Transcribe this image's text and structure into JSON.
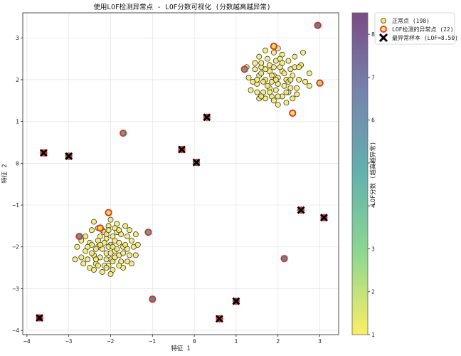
{
  "chart_data": {
    "type": "scatter",
    "title": "使用LOF检测异常点 - LOF分数可视化 (分数越高越异常)",
    "xlabel": "特征 1",
    "ylabel": "特征 2",
    "xlim": [
      -4.1,
      3.45
    ],
    "ylim": [
      -4.1,
      3.6
    ],
    "x_ticks": [
      "−4",
      "−3",
      "−2",
      "−1",
      "0",
      "1",
      "2",
      "3"
    ],
    "y_ticks": [
      "−4",
      "−3",
      "−2",
      "−1",
      "0",
      "1",
      "2",
      "3"
    ],
    "grid": true,
    "colorbar": {
      "label": "LOF分数 (越高越异常)",
      "range": [
        1,
        8.5
      ],
      "ticks": [
        "1",
        "2",
        "3",
        "4",
        "5",
        "6",
        "7",
        "8"
      ],
      "colormap": "viridis",
      "alpha": 0.7
    },
    "legend_position": "outside-top-right",
    "legend": {
      "normal": "正常点 (198)",
      "outlier": "LOF检测的异常点 (22)",
      "worst": "最异常样本 (LOF=8.50)"
    },
    "colors": {
      "normal_fill": "#f5e96a",
      "outlier_edge": "#e8262a",
      "worst_cross": "#000000"
    },
    "series": [
      {
        "name": "正常点 (198)",
        "marker": "circle",
        "points": [
          [
            1.6,
            2.3
          ],
          [
            1.7,
            2.0
          ],
          [
            1.8,
            1.8
          ],
          [
            1.9,
            2.1
          ],
          [
            2.0,
            1.9
          ],
          [
            2.1,
            2.2
          ],
          [
            1.5,
            1.9
          ],
          [
            1.6,
            2.4
          ],
          [
            1.75,
            2.5
          ],
          [
            1.95,
            2.45
          ],
          [
            2.05,
            2.3
          ],
          [
            2.2,
            2.0
          ],
          [
            2.3,
            1.8
          ],
          [
            1.85,
            1.6
          ],
          [
            1.65,
            1.7
          ],
          [
            1.55,
            2.1
          ],
          [
            1.45,
            2.25
          ],
          [
            1.4,
            1.95
          ],
          [
            1.5,
            1.7
          ],
          [
            1.7,
            1.55
          ],
          [
            1.9,
            1.5
          ],
          [
            2.1,
            1.6
          ],
          [
            2.25,
            1.7
          ],
          [
            2.35,
            2.1
          ],
          [
            2.4,
            2.3
          ],
          [
            2.25,
            2.45
          ],
          [
            2.1,
            2.6
          ],
          [
            1.9,
            2.65
          ],
          [
            1.7,
            2.7
          ],
          [
            1.55,
            2.55
          ],
          [
            1.8,
            2.2
          ],
          [
            2.0,
            2.05
          ],
          [
            1.85,
            1.95
          ],
          [
            1.75,
            1.85
          ],
          [
            2.15,
            1.85
          ],
          [
            1.95,
            1.75
          ],
          [
            1.6,
            2.15
          ],
          [
            2.3,
            2.25
          ],
          [
            2.5,
            2.0
          ],
          [
            2.45,
            1.65
          ],
          [
            2.55,
            2.35
          ],
          [
            2.65,
            1.95
          ],
          [
            1.3,
            2.05
          ],
          [
            1.35,
            1.75
          ],
          [
            2.0,
            1.4
          ],
          [
            2.2,
            1.45
          ],
          [
            1.8,
            2.35
          ],
          [
            1.65,
            1.95
          ],
          [
            2.05,
            2.5
          ],
          [
            2.35,
            1.55
          ],
          [
            1.5,
            2.0
          ],
          [
            1.9,
            2.3
          ],
          [
            2.15,
            2.15
          ],
          [
            1.7,
            2.25
          ],
          [
            2.25,
            1.95
          ],
          [
            1.8,
            1.7
          ],
          [
            2.4,
            2.55
          ],
          [
            1.55,
            1.55
          ],
          [
            2.5,
            2.3
          ],
          [
            2.75,
            2.15
          ],
          [
            2.6,
            2.65
          ],
          [
            1.25,
            2.3
          ],
          [
            2.0,
            2.75
          ],
          [
            1.6,
            1.6
          ],
          [
            2.1,
            2.4
          ],
          [
            1.95,
            2.0
          ],
          [
            2.3,
            2.0
          ],
          [
            1.45,
            2.4
          ],
          [
            1.85,
            2.1
          ],
          [
            2.2,
            1.7
          ],
          [
            2.45,
            1.8
          ],
          [
            2.75,
            1.85
          ],
          [
            2.0,
            1.6
          ],
          [
            -2.3,
            -2.0
          ],
          [
            -2.1,
            -1.8
          ],
          [
            -1.9,
            -2.1
          ],
          [
            -2.0,
            -2.3
          ],
          [
            -2.2,
            -1.6
          ],
          [
            -1.8,
            -1.9
          ],
          [
            -2.4,
            -2.2
          ],
          [
            -2.5,
            -1.9
          ],
          [
            -1.7,
            -2.0
          ],
          [
            -2.05,
            -1.5
          ],
          [
            -1.85,
            -1.65
          ],
          [
            -2.15,
            -2.45
          ],
          [
            -1.95,
            -2.55
          ],
          [
            -2.35,
            -2.4
          ],
          [
            -2.6,
            -2.1
          ],
          [
            -2.7,
            -1.85
          ],
          [
            -1.6,
            -1.75
          ],
          [
            -1.55,
            -2.2
          ],
          [
            -1.75,
            -2.35
          ],
          [
            -2.25,
            -1.75
          ],
          [
            -2.45,
            -1.6
          ],
          [
            -2.0,
            -1.95
          ],
          [
            -2.1,
            -2.15
          ],
          [
            -1.9,
            -1.85
          ],
          [
            -2.3,
            -1.85
          ],
          [
            -1.8,
            -2.2
          ],
          [
            -2.55,
            -2.3
          ],
          [
            -2.2,
            -2.6
          ],
          [
            -1.65,
            -1.5
          ],
          [
            -1.5,
            -1.85
          ],
          [
            -1.45,
            -2.0
          ],
          [
            -1.7,
            -2.5
          ],
          [
            -2.8,
            -2.0
          ],
          [
            -2.4,
            -1.4
          ],
          [
            -2.0,
            -1.35
          ],
          [
            -1.85,
            -1.45
          ],
          [
            -1.95,
            -2.35
          ],
          [
            -2.15,
            -1.9
          ],
          [
            -2.35,
            -2.05
          ],
          [
            -2.05,
            -2.0
          ],
          [
            -1.9,
            -1.55
          ],
          [
            -2.5,
            -2.5
          ],
          [
            -2.1,
            -2.3
          ],
          [
            -1.6,
            -2.35
          ],
          [
            -2.65,
            -2.4
          ],
          [
            -1.4,
            -2.2
          ],
          [
            -2.25,
            -2.25
          ],
          [
            -1.75,
            -1.7
          ],
          [
            -2.0,
            -2.65
          ],
          [
            -1.85,
            -2.05
          ],
          [
            -2.3,
            -1.55
          ],
          [
            -2.15,
            -1.65
          ],
          [
            -1.65,
            -1.95
          ],
          [
            -2.45,
            -1.95
          ],
          [
            -1.95,
            -1.75
          ],
          [
            -1.35,
            -1.95
          ],
          [
            -2.6,
            -1.75
          ],
          [
            -2.05,
            -2.45
          ],
          [
            -1.8,
            -2.45
          ],
          [
            -2.2,
            -2.05
          ],
          [
            -2.7,
            -2.25
          ],
          [
            -1.55,
            -1.6
          ],
          [
            -2.4,
            -2.55
          ],
          [
            -1.7,
            -2.15
          ],
          [
            -1.9,
            -2.25
          ],
          [
            -2.1,
            -1.7
          ],
          [
            -2.35,
            -2.3
          ],
          [
            -1.5,
            -2.4
          ],
          [
            -2.55,
            -2.0
          ],
          [
            -2.0,
            -2.15
          ],
          [
            -1.8,
            -1.6
          ],
          [
            -2.25,
            -1.95
          ],
          [
            -2.1,
            -2.5
          ],
          [
            -1.95,
            -2.0
          ],
          [
            -2.45,
            -2.15
          ],
          [
            -1.6,
            -2.05
          ],
          [
            -2.3,
            -2.45
          ],
          [
            -1.4,
            -1.7
          ],
          [
            -2.85,
            -2.3
          ],
          [
            -2.05,
            -1.6
          ]
        ]
      },
      {
        "name": "LOF检测的异常点 (22)",
        "marker": "circle-red-edge",
        "points": [
          [
            1.9,
            2.8
          ],
          [
            1.2,
            2.25
          ],
          [
            2.95,
            3.3
          ],
          [
            3.0,
            1.92
          ],
          [
            2.35,
            1.2
          ],
          [
            -1.7,
            0.72
          ],
          [
            -2.05,
            -1.18
          ],
          [
            -2.25,
            -1.55
          ],
          [
            -2.75,
            -1.75
          ],
          [
            -1.1,
            -1.65
          ],
          [
            -1.0,
            -3.25
          ],
          [
            2.15,
            -2.28
          ],
          [
            -3.7,
            -3.7
          ],
          [
            -3.6,
            0.25
          ],
          [
            -3.0,
            0.17
          ],
          [
            -0.3,
            0.33
          ],
          [
            0.3,
            1.1
          ],
          [
            0.05,
            0.02
          ],
          [
            2.55,
            -1.12
          ],
          [
            3.1,
            -1.3
          ],
          [
            0.6,
            -3.72
          ],
          [
            1.0,
            -3.3
          ]
        ],
        "lof_scores": [
          1.6,
          3.9,
          5.5,
          2.0,
          1.4,
          4.4,
          1.5,
          1.3,
          4.6,
          4.3,
          5.3,
          5.3,
          8.5,
          5.0,
          4.7,
          3.7,
          3.8,
          4.0,
          5.6,
          6.2,
          6.7,
          6.5
        ]
      },
      {
        "name": "最异常样本 (LOF=8.50)",
        "marker": "x",
        "points": [
          [
            -3.7,
            -3.7
          ],
          [
            -3.6,
            0.25
          ],
          [
            -3.0,
            0.17
          ],
          [
            -0.3,
            0.33
          ],
          [
            0.3,
            1.1
          ],
          [
            0.05,
            0.02
          ],
          [
            2.55,
            -1.12
          ],
          [
            3.1,
            -1.3
          ],
          [
            0.6,
            -3.72
          ],
          [
            1.0,
            -3.3
          ]
        ]
      }
    ]
  }
}
